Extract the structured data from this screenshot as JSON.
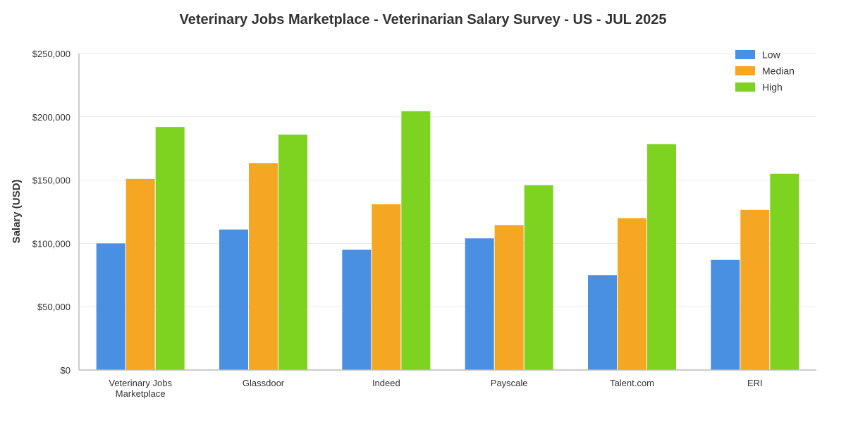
{
  "chart_data": {
    "type": "bar",
    "title": "Veterinary Jobs Marketplace - Veterinarian Salary Survey - US - JUL 2025",
    "xlabel": "",
    "ylabel": "Salary (USD)",
    "ylim": [
      0,
      250000
    ],
    "yticks": [
      0,
      50000,
      100000,
      150000,
      200000,
      250000
    ],
    "ytick_labels": [
      "$0",
      "$50,000",
      "$100,000",
      "$150,000",
      "$200,000",
      "$250,000"
    ],
    "grid": true,
    "legend_position": "top-right",
    "categories": [
      [
        "Veterinary Jobs",
        "Marketplace"
      ],
      [
        "Glassdoor"
      ],
      [
        "Indeed"
      ],
      [
        "Payscale"
      ],
      [
        "Talent.com"
      ],
      [
        "ERI"
      ]
    ],
    "series": [
      {
        "name": "Low",
        "color": "#4a90e2",
        "values": [
          100000,
          111000,
          95000,
          104000,
          75000,
          87000
        ]
      },
      {
        "name": "Median",
        "color": "#f5a623",
        "values": [
          151000,
          163500,
          131000,
          114500,
          120000,
          126500
        ]
      },
      {
        "name": "High",
        "color": "#7ed321",
        "values": [
          192000,
          186000,
          204500,
          146000,
          178500,
          155000
        ]
      }
    ]
  }
}
